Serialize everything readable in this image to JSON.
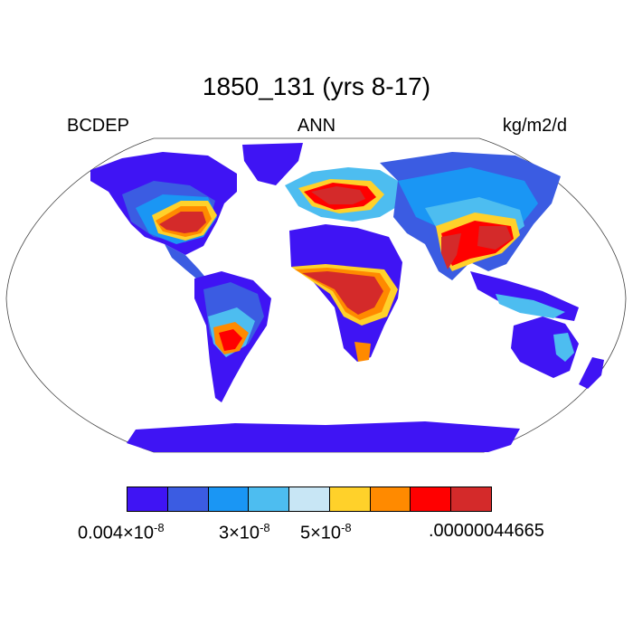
{
  "title": "1850_131 (yrs 8-17)",
  "left_label": "BCDEP",
  "center_label": "ANN",
  "right_label": "kg/m2/d",
  "colorbar": {
    "colors": [
      "#3f14f4",
      "#3b5ce2",
      "#1a96f4",
      "#4dbdf0",
      "#c8e6f5",
      "#ffd12a",
      "#ff8a00",
      "#ff0000",
      "#d42a2a"
    ],
    "labels": [
      {
        "mantissa": "0.004×10",
        "exp": "-8"
      },
      {
        "mantissa": "3×10",
        "exp": "-8"
      },
      {
        "mantissa": "5×10",
        "exp": "-8"
      },
      {
        "text": ".00000044665"
      }
    ]
  }
}
